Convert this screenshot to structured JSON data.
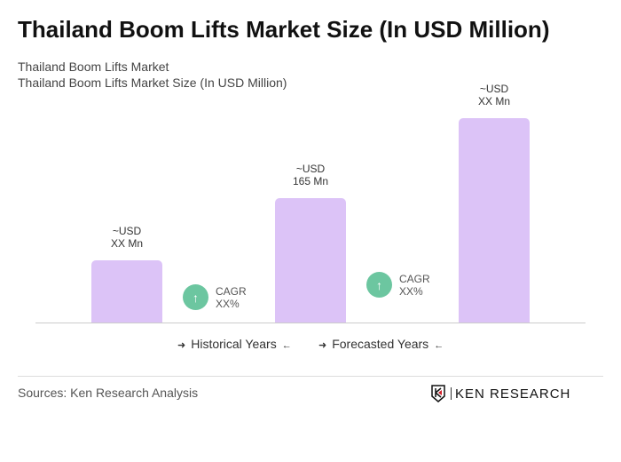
{
  "title": "Thailand Boom Lifts Market Size (In USD Million)",
  "subtitle1": "Thailand Boom Lifts Market",
  "subtitle2": "Thailand Boom Lifts Market Size (In USD Million)",
  "chart_data": {
    "type": "bar",
    "categories": [
      "",
      "",
      ""
    ],
    "values": [
      82.5,
      165,
      271
    ],
    "data_labels": [
      [
        "~USD",
        "XX Mn"
      ],
      [
        "~USD",
        "165 Mn"
      ],
      [
        "~USD",
        "XX Mn"
      ]
    ],
    "bar_color": "#dcc3f7",
    "cagr": [
      {
        "label": "CAGR",
        "value": "XX%"
      },
      {
        "label": "CAGR",
        "value": "XX%"
      }
    ],
    "legend": [
      "Historical Years",
      "Forecasted Years"
    ]
  },
  "source": "Sources: Ken Research Analysis",
  "logo": "KEN RESEARCH"
}
